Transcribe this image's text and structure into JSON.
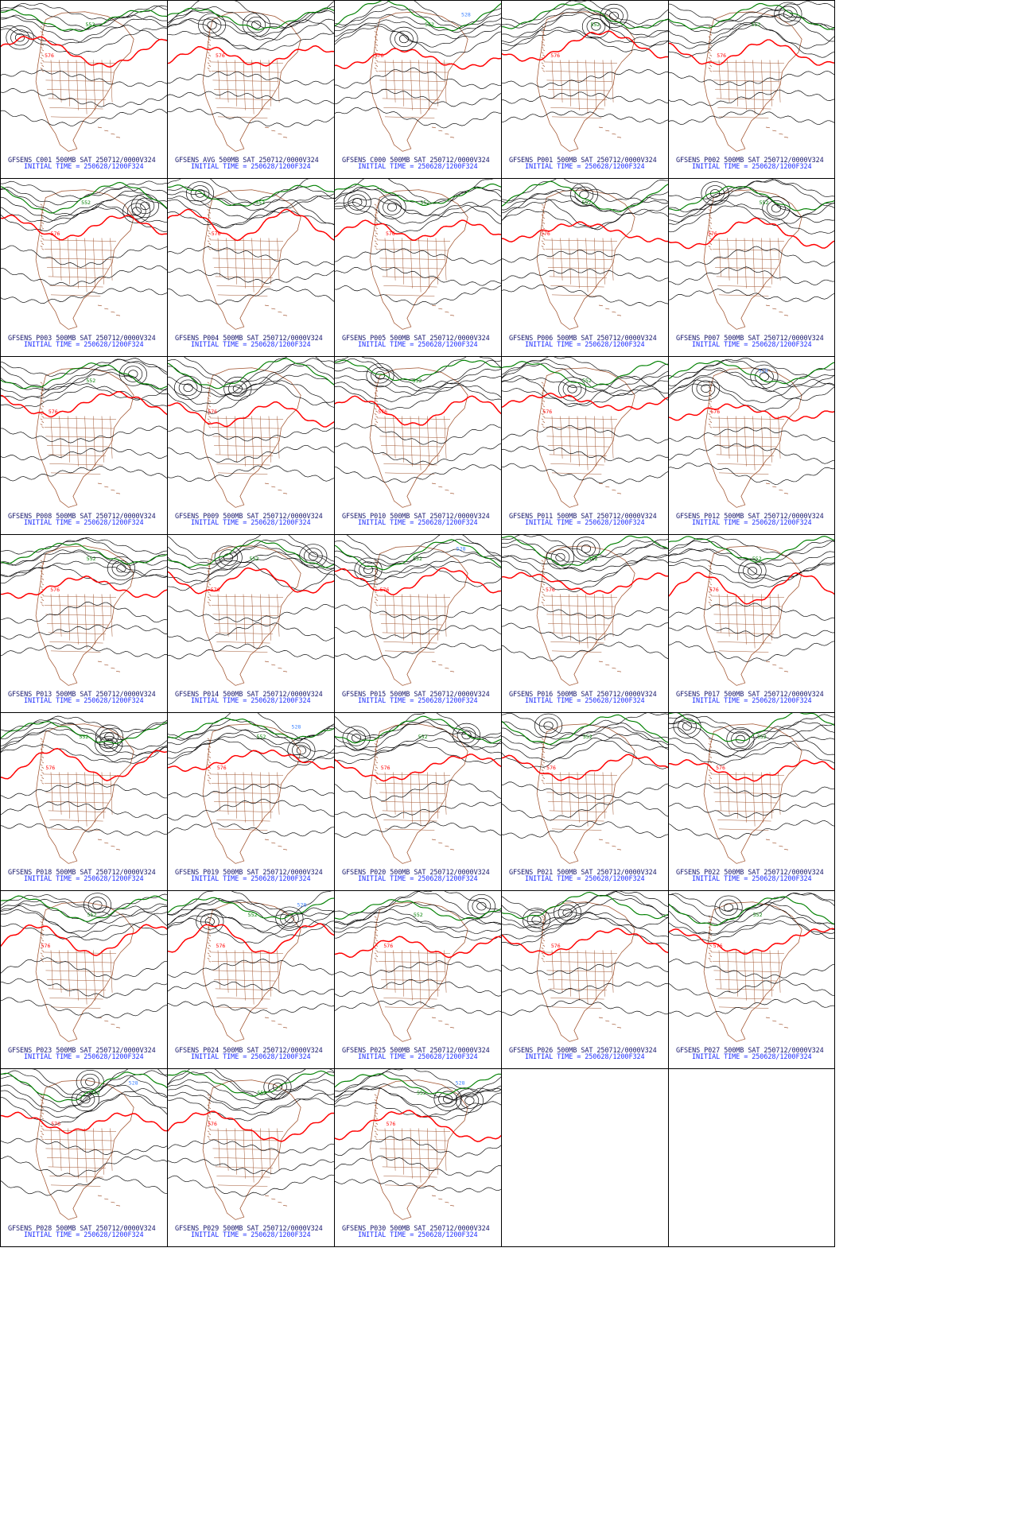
{
  "colors": {
    "contour_black": "#000000",
    "contour_576": "#ff0000",
    "contour_552": "#008000",
    "contour_low": "#3a80ff",
    "map_lines": "#a0522d",
    "caption_model": "#1a1a6e",
    "caption_time": "#2030ff"
  },
  "grid": {
    "columns": 5
  },
  "panels": [
    {
      "caption": "GFSENS C001 500MB SAT 250712/0000V324",
      "init": "INITIAL TIME = 250628/1200F324",
      "labels": [
        "576",
        "552"
      ]
    },
    {
      "caption": "GFSENS AVG 500MB SAT 250712/0000V324",
      "init": "INITIAL TIME = 250628/1200F324",
      "labels": [
        "576"
      ]
    },
    {
      "caption": "GFSENS C000 500MB SAT 250712/0000V324",
      "init": "INITIAL TIME = 250628/1200F324",
      "labels": [
        "576",
        "552",
        "528"
      ]
    },
    {
      "caption": "GFSENS P001 500MB SAT 250712/0000V324",
      "init": "INITIAL TIME = 250628/1200F324",
      "labels": [
        "576",
        "552"
      ]
    },
    {
      "caption": "GFSENS P002 500MB SAT 250712/0000V324",
      "init": "INITIAL TIME = 250628/1200F324",
      "labels": [
        "576",
        "552"
      ]
    },
    {
      "caption": "GFSENS P003 500MB SAT 250712/0000V324",
      "init": "INITIAL TIME = 250628/1200F324",
      "labels": [
        "576",
        "552"
      ]
    },
    {
      "caption": "GFSENS P004 500MB SAT 250712/0000V324",
      "init": "INITIAL TIME = 250628/1200F324",
      "labels": [
        "576",
        "552"
      ]
    },
    {
      "caption": "GFSENS P005 500MB SAT 250712/0000V324",
      "init": "INITIAL TIME = 250628/1200F324",
      "labels": [
        "576",
        "552"
      ]
    },
    {
      "caption": "GFSENS P006 500MB SAT 250712/0000V324",
      "init": "INITIAL TIME = 250628/1200F324",
      "labels": [
        "576",
        "552"
      ]
    },
    {
      "caption": "GFSENS P007 500MB SAT 250712/0000V324",
      "init": "INITIAL TIME = 250628/1200F324",
      "labels": [
        "576",
        "552"
      ]
    },
    {
      "caption": "GFSENS P008 500MB SAT 250712/0000V324",
      "init": "INITIAL TIME = 250628/1200F324",
      "labels": [
        "576",
        "552"
      ]
    },
    {
      "caption": "GFSENS P009 500MB SAT 250712/0000V324",
      "init": "INITIAL TIME = 250628/1200F324",
      "labels": [
        "576"
      ]
    },
    {
      "caption": "GFSENS P010 500MB SAT 250712/0000V324",
      "init": "INITIAL TIME = 250628/1200F324",
      "labels": [
        "576",
        "552"
      ]
    },
    {
      "caption": "GFSENS P011 500MB SAT 250712/0000V324",
      "init": "INITIAL TIME = 250628/1200F324",
      "labels": [
        "576",
        "552"
      ]
    },
    {
      "caption": "GFSENS P012 500MB SAT 250712/0000V324",
      "init": "INITIAL TIME = 250628/1200F324",
      "labels": [
        "576",
        "528"
      ]
    },
    {
      "caption": "GFSENS P013 500MB SAT 250712/0000V324",
      "init": "INITIAL TIME = 250628/1200F324",
      "labels": [
        "576",
        "552"
      ]
    },
    {
      "caption": "GFSENS P014 500MB SAT 250712/0000V324",
      "init": "INITIAL TIME = 250628/1200F324",
      "labels": [
        "576",
        "552"
      ]
    },
    {
      "caption": "GFSENS P015 500MB SAT 250712/0000V324",
      "init": "INITIAL TIME = 250628/1200F324",
      "labels": [
        "576",
        "552",
        "528"
      ]
    },
    {
      "caption": "GFSENS P016 500MB SAT 250712/0000V324",
      "init": "INITIAL TIME = 250628/1200F324",
      "labels": [
        "576",
        "552"
      ]
    },
    {
      "caption": "GFSENS P017 500MB SAT 250712/0000V324",
      "init": "INITIAL TIME = 250628/1200F324",
      "labels": [
        "576",
        "552"
      ]
    },
    {
      "caption": "GFSENS P018 500MB SAT 250712/0000V324",
      "init": "INITIAL TIME = 250628/1200F324",
      "labels": [
        "576",
        "552"
      ]
    },
    {
      "caption": "GFSENS P019 500MB SAT 250712/0000V324",
      "init": "INITIAL TIME = 250628/1200F324",
      "labels": [
        "576",
        "552",
        "528"
      ]
    },
    {
      "caption": "GFSENS P020 500MB SAT 250712/0000V324",
      "init": "INITIAL TIME = 250628/1200F324",
      "labels": [
        "576",
        "552"
      ]
    },
    {
      "caption": "GFSENS P021 500MB SAT 250712/0000V324",
      "init": "INITIAL TIME = 250628/1200F324",
      "labels": [
        "576",
        "552"
      ]
    },
    {
      "caption": "GFSENS P022 500MB SAT 250712/0000V324",
      "init": "INITIAL TIME = 250628/1200F324",
      "labels": [
        "576",
        "552"
      ]
    },
    {
      "caption": "GFSENS P023 500MB SAT 250712/0000V324",
      "init": "INITIAL TIME = 250628/1200F324",
      "labels": [
        "576",
        "552"
      ]
    },
    {
      "caption": "GFSENS P024 500MB SAT 250712/0000V324",
      "init": "INITIAL TIME = 250628/1200F324",
      "labels": [
        "576",
        "552",
        "528"
      ]
    },
    {
      "caption": "GFSENS P025 500MB SAT 250712/0000V324",
      "init": "INITIAL TIME = 250628/1200F324",
      "labels": [
        "576",
        "552"
      ]
    },
    {
      "caption": "GFSENS P026 500MB SAT 250712/0000V324",
      "init": "INITIAL TIME = 250628/1200F324",
      "labels": [
        "576"
      ]
    },
    {
      "caption": "GFSENS P027 500MB SAT 250712/0000V324",
      "init": "INITIAL TIME = 250628/1200F324",
      "labels": [
        "576",
        "552"
      ]
    },
    {
      "caption": "GFSENS P028 500MB SAT 250712/0000V324",
      "init": "INITIAL TIME = 250628/1200F324",
      "labels": [
        "576",
        "552",
        "528"
      ]
    },
    {
      "caption": "GFSENS P029 500MB SAT 250712/0000V324",
      "init": "INITIAL TIME = 250628/1200F324",
      "labels": [
        "576",
        "552"
      ]
    },
    {
      "caption": "GFSENS P030 500MB SAT 250712/0000V324",
      "init": "INITIAL TIME = 250628/1200F324",
      "labels": [
        "576",
        "552",
        "528"
      ]
    }
  ]
}
